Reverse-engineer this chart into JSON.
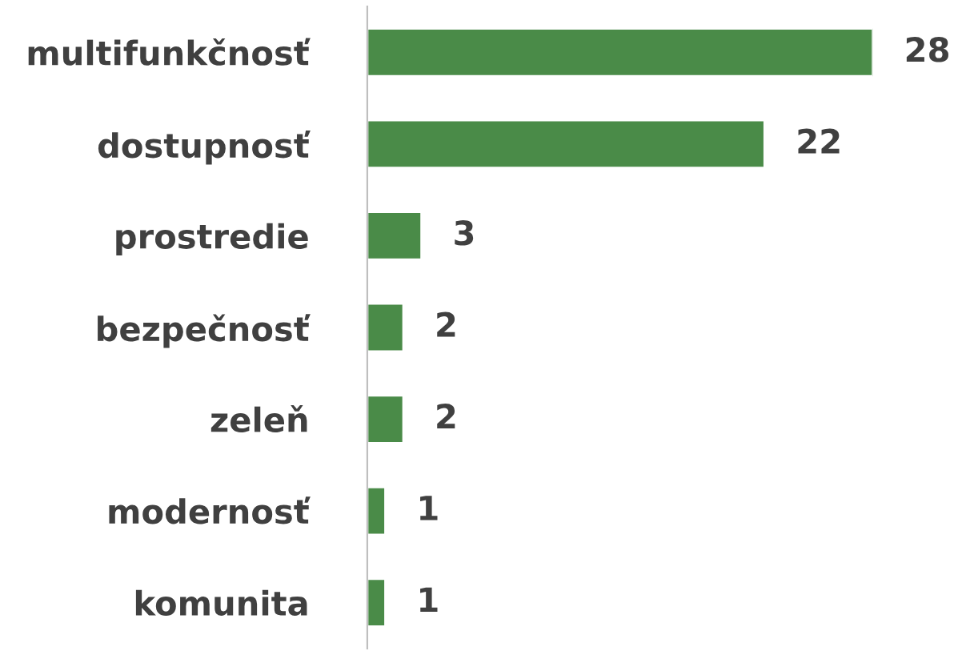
{
  "chart_data": {
    "type": "bar",
    "orientation": "horizontal",
    "categories": [
      "multifunkčnosť",
      "dostupnosť",
      "prostredie",
      "bezpečnosť",
      "zeleň",
      "modernosť",
      "komunita"
    ],
    "values": [
      28,
      22,
      3,
      2,
      2,
      1,
      1
    ],
    "color": "#4a8b48",
    "data_labels": true,
    "grid": false,
    "legend": false,
    "tick_labels": "y"
  }
}
